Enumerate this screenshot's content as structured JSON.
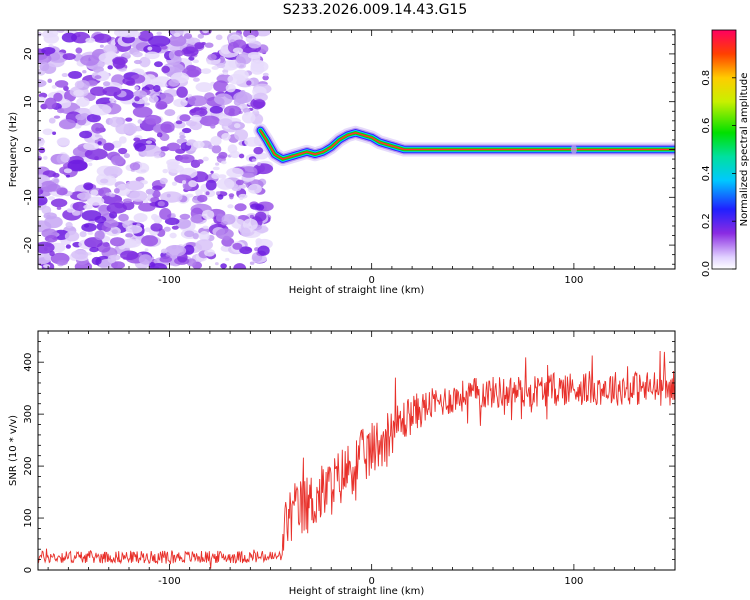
{
  "page_title": "S233.2026.009.14.43.G15",
  "chart_data": [
    {
      "type": "heatmap",
      "title": "S233.2026.009.14.43.G15",
      "xlabel": "Height of straight line (km)",
      "ylabel": "Frequency (Hz)",
      "xlim": [
        -165,
        150
      ],
      "ylim": [
        -25,
        25
      ],
      "x_ticks": [
        -100,
        0,
        100
      ],
      "y_ticks": [
        -20,
        -10,
        0,
        10,
        20
      ],
      "noise_region_x": [
        -165,
        -55
      ],
      "trace": {
        "x": [
          -55,
          -52,
          -48,
          -44,
          -40,
          -36,
          -32,
          -28,
          -24,
          -20,
          -16,
          -12,
          -8,
          -4,
          0,
          4,
          8,
          12,
          16,
          20,
          30,
          60,
          100,
          150
        ],
        "y": [
          4,
          2,
          -1,
          -2,
          -1.5,
          -1,
          -0.5,
          -1,
          -0.5,
          0.5,
          2,
          3,
          3.5,
          3,
          2.5,
          1.5,
          1,
          0.5,
          0,
          0,
          0,
          0,
          0,
          0
        ]
      },
      "colorbar": {
        "label": "Normalized spectral amplitude",
        "ticks": [
          0.0,
          0.2,
          0.4,
          0.6,
          0.8
        ],
        "range": [
          0,
          1
        ]
      }
    },
    {
      "type": "line",
      "xlabel": "Height of straight line (km)",
      "ylabel": "SNR (10 * v/v)",
      "xlim": [
        -165,
        150
      ],
      "ylim": [
        0,
        460
      ],
      "x_ticks": [
        -100,
        0,
        100
      ],
      "y_ticks": [
        0,
        100,
        200,
        300,
        400
      ],
      "series": [
        {
          "name": "SNR",
          "color": "#e8302a",
          "trend_x": [
            -165,
            -45,
            -42,
            -30,
            -20,
            -10,
            0,
            10,
            20,
            30,
            50,
            80,
            100,
            120,
            150
          ],
          "trend_y": [
            25,
            25,
            100,
            130,
            160,
            200,
            230,
            270,
            300,
            320,
            340,
            345,
            350,
            350,
            350
          ],
          "noise_x": [
            -165,
            -45,
            -42,
            0,
            30,
            150
          ],
          "noise_amp": [
            12,
            12,
            60,
            55,
            30,
            35
          ]
        }
      ]
    }
  ]
}
